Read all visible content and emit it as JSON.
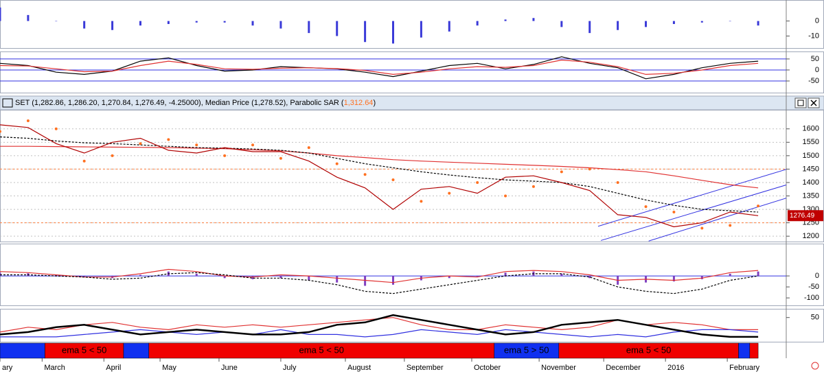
{
  "chart_data": [
    {
      "type": "bar",
      "x": [
        0,
        10,
        20,
        30,
        40,
        50,
        60,
        70,
        80,
        90,
        100,
        110,
        120,
        130,
        140,
        150,
        160,
        170,
        180,
        190,
        200,
        210,
        220,
        230,
        240,
        250,
        260,
        270
      ],
      "xlim": [
        0,
        280
      ],
      "ylim": [
        -18,
        14
      ],
      "yticks": [
        0,
        -10
      ],
      "series": [
        {
          "style": "bar",
          "color": "#3a3ad8",
          "values": [
            9,
            4,
            0,
            -5,
            -6,
            -3,
            -2,
            -1,
            -1,
            -3,
            -5,
            -8,
            -10,
            -14,
            -15,
            -11,
            -7,
            -3,
            1,
            2,
            -4,
            -8,
            -6,
            -4,
            -2,
            -1,
            0,
            -3
          ]
        }
      ]
    },
    {
      "type": "line",
      "x": [
        0,
        10,
        20,
        30,
        40,
        50,
        60,
        70,
        80,
        90,
        100,
        110,
        120,
        130,
        140,
        150,
        160,
        170,
        180,
        190,
        200,
        210,
        220,
        230,
        240,
        250,
        260,
        270
      ],
      "xlim": [
        0,
        280
      ],
      "ylim": [
        -103,
        84
      ],
      "yticks": [
        50,
        0,
        -50
      ],
      "hlines": {
        "color": "#3030e0",
        "values": [
          50,
          0,
          -50
        ]
      },
      "series": [
        {
          "style": "line",
          "color": "#000000",
          "values": [
            30,
            20,
            -10,
            -20,
            -5,
            40,
            55,
            20,
            -5,
            0,
            15,
            10,
            5,
            -10,
            -30,
            -5,
            20,
            30,
            5,
            25,
            60,
            30,
            10,
            -40,
            -20,
            10,
            30,
            40
          ]
        },
        {
          "style": "line",
          "color": "#e03030",
          "values": [
            20,
            18,
            5,
            -8,
            -5,
            20,
            40,
            25,
            5,
            3,
            8,
            10,
            6,
            -2,
            -20,
            -10,
            5,
            15,
            12,
            20,
            45,
            35,
            15,
            -20,
            -15,
            0,
            20,
            30
          ]
        }
      ]
    },
    {
      "type": "line",
      "title": "SET (1,282.86, 1,286.20, 1,270.84, 1,276.49, -4.25000), Median Price (1,278.52), Parabolic SAR (",
      "title_value": "1,312.64",
      "title_end": ")",
      "last_label": "1276.49",
      "x": [
        0,
        10,
        20,
        30,
        40,
        50,
        60,
        70,
        80,
        90,
        100,
        110,
        120,
        130,
        140,
        150,
        160,
        170,
        180,
        190,
        200,
        210,
        220,
        230,
        240,
        250,
        260,
        270
      ],
      "xlim": [
        0,
        280
      ],
      "ylim": [
        1180,
        1671
      ],
      "yticks": [
        1200,
        1250,
        1300,
        1350,
        1400,
        1450,
        1500,
        1550,
        1600
      ],
      "grid": true,
      "levels": {
        "color": "#ff8040",
        "values": [
          1450,
          1250
        ]
      },
      "lines": [
        {
          "color": "#3030e0",
          "x": [
            213,
            280
          ],
          "y": [
            1237,
            1449
          ]
        },
        {
          "color": "#3030e0",
          "x": [
            214,
            280
          ],
          "y": [
            1184,
            1391
          ]
        },
        {
          "color": "#3030e0",
          "x": [
            231,
            280
          ],
          "y": [
            1182,
            1342
          ]
        }
      ],
      "series": [
        {
          "style": "line",
          "color": "#e03030",
          "values": [
            1535,
            1535,
            1534,
            1533,
            1532,
            1531,
            1530,
            1528,
            1526,
            1522,
            1518,
            1510,
            1500,
            1493,
            1485,
            1480,
            1476,
            1472,
            1468,
            1464,
            1460,
            1455,
            1448,
            1440,
            1425,
            1408,
            1392,
            1380
          ]
        },
        {
          "style": "dashed",
          "color": "#000000",
          "values": [
            1570,
            1565,
            1555,
            1548,
            1545,
            1540,
            1535,
            1530,
            1528,
            1525,
            1520,
            1510,
            1490,
            1470,
            1455,
            1440,
            1428,
            1418,
            1410,
            1405,
            1400,
            1385,
            1360,
            1335,
            1315,
            1300,
            1295,
            1290
          ]
        },
        {
          "style": "dots",
          "color": "#ff7020",
          "values": [
            1590,
            1630,
            1600,
            1480,
            1500,
            1545,
            1560,
            1540,
            1500,
            1540,
            1490,
            1530,
            1470,
            1430,
            1410,
            1330,
            1360,
            1400,
            1350,
            1385,
            1440,
            1450,
            1400,
            1310,
            1290,
            1230,
            1240,
            1312.64
          ]
        },
        {
          "style": "line",
          "color": "#b00000",
          "values": [
            1615,
            1605,
            1545,
            1510,
            1550,
            1565,
            1520,
            1510,
            1530,
            1515,
            1515,
            1480,
            1420,
            1380,
            1300,
            1375,
            1385,
            1360,
            1420,
            1425,
            1400,
            1370,
            1280,
            1270,
            1235,
            1250,
            1290,
            1276.49
          ]
        }
      ]
    },
    {
      "type": "bar",
      "x": [
        0,
        10,
        20,
        30,
        40,
        50,
        60,
        70,
        80,
        90,
        100,
        110,
        120,
        130,
        140,
        150,
        160,
        170,
        180,
        190,
        200,
        210,
        220,
        230,
        240,
        250,
        260,
        270
      ],
      "xlim": [
        0,
        280
      ],
      "ylim": [
        -134,
        147
      ],
      "yticks": [
        0,
        -50,
        -100
      ],
      "hlines": {
        "color": "#3030e0",
        "values": [
          0
        ]
      },
      "series": [
        {
          "style": "bar",
          "color": "#8040c0",
          "values": [
            15,
            12,
            5,
            -5,
            -10,
            5,
            20,
            10,
            -10,
            -15,
            -10,
            -20,
            -30,
            -45,
            -40,
            -20,
            -10,
            -5,
            15,
            20,
            10,
            -10,
            -40,
            -30,
            -25,
            -15,
            10,
            20
          ]
        },
        {
          "style": "line",
          "color": "#e03030",
          "values": [
            20,
            15,
            5,
            -5,
            -5,
            10,
            30,
            20,
            0,
            -5,
            5,
            0,
            -10,
            -20,
            -30,
            -10,
            0,
            -5,
            20,
            25,
            20,
            5,
            -20,
            -15,
            -20,
            -10,
            15,
            25
          ]
        },
        {
          "style": "dashed",
          "color": "#000000",
          "values": [
            5,
            5,
            0,
            -5,
            -15,
            -10,
            10,
            15,
            5,
            -10,
            -10,
            -20,
            -40,
            -70,
            -80,
            -60,
            -40,
            -20,
            0,
            10,
            10,
            -5,
            -50,
            -70,
            -80,
            -60,
            -20,
            0
          ]
        }
      ]
    },
    {
      "type": "line",
      "x": [
        0,
        10,
        20,
        30,
        40,
        50,
        60,
        70,
        80,
        90,
        100,
        110,
        120,
        130,
        140,
        150,
        160,
        170,
        180,
        190,
        200,
        210,
        220,
        230,
        240,
        250,
        260,
        270
      ],
      "xlim": [
        0,
        280
      ],
      "ylim": [
        0,
        68
      ],
      "yticks": [
        50
      ],
      "series": [
        {
          "style": "line",
          "color": "#e03030",
          "values": [
            20,
            30,
            25,
            35,
            40,
            30,
            25,
            35,
            30,
            35,
            30,
            35,
            40,
            45,
            50,
            35,
            25,
            25,
            35,
            30,
            25,
            30,
            45,
            35,
            40,
            35,
            25,
            25
          ]
        },
        {
          "style": "line",
          "color": "#3030e0",
          "values": [
            10,
            10,
            10,
            15,
            20,
            25,
            20,
            15,
            20,
            15,
            25,
            15,
            15,
            10,
            15,
            25,
            20,
            15,
            25,
            20,
            15,
            10,
            15,
            10,
            20,
            25,
            25,
            20
          ]
        },
        {
          "style": "thick",
          "color": "#000000",
          "values": [
            15,
            20,
            30,
            35,
            25,
            15,
            20,
            25,
            20,
            15,
            15,
            20,
            35,
            40,
            55,
            45,
            35,
            25,
            15,
            20,
            35,
            40,
            45,
            35,
            25,
            15,
            10,
            10
          ]
        }
      ]
    },
    {
      "type": "timeline",
      "xlim": [
        0,
        280
      ],
      "segments": [
        {
          "start": 0,
          "end": 16,
          "color": "#1030f0",
          "label": null
        },
        {
          "start": 16,
          "end": 44,
          "color": "#f00000",
          "label": "ema 5 < 50"
        },
        {
          "start": 44,
          "end": 53,
          "color": "#1030f0",
          "label": null
        },
        {
          "start": 53,
          "end": 176,
          "color": "#f00000",
          "label": "ema 5 < 50"
        },
        {
          "start": 176,
          "end": 199,
          "color": "#1030f0",
          "label": "ema 5 > 50"
        },
        {
          "start": 199,
          "end": 263,
          "color": "#f00000",
          "label": "ema 5 < 50"
        },
        {
          "start": 263,
          "end": 267,
          "color": "#1030f0",
          "label": null
        },
        {
          "start": 267,
          "end": 270,
          "color": "#f00000",
          "label": null
        }
      ],
      "xticks": [
        {
          "value": 0,
          "label": "ary"
        },
        {
          "value": 15,
          "label": "March"
        },
        {
          "value": 37,
          "label": "April"
        },
        {
          "value": 57,
          "label": "May"
        },
        {
          "value": 78,
          "label": "June"
        },
        {
          "value": 100,
          "label": "July"
        },
        {
          "value": 123,
          "label": "August"
        },
        {
          "value": 144,
          "label": "September"
        },
        {
          "value": 168,
          "label": "October"
        },
        {
          "value": 192,
          "label": "November"
        },
        {
          "value": 215,
          "label": "December"
        },
        {
          "value": 237,
          "label": "2016"
        },
        {
          "value": 259,
          "label": "February"
        }
      ]
    }
  ]
}
